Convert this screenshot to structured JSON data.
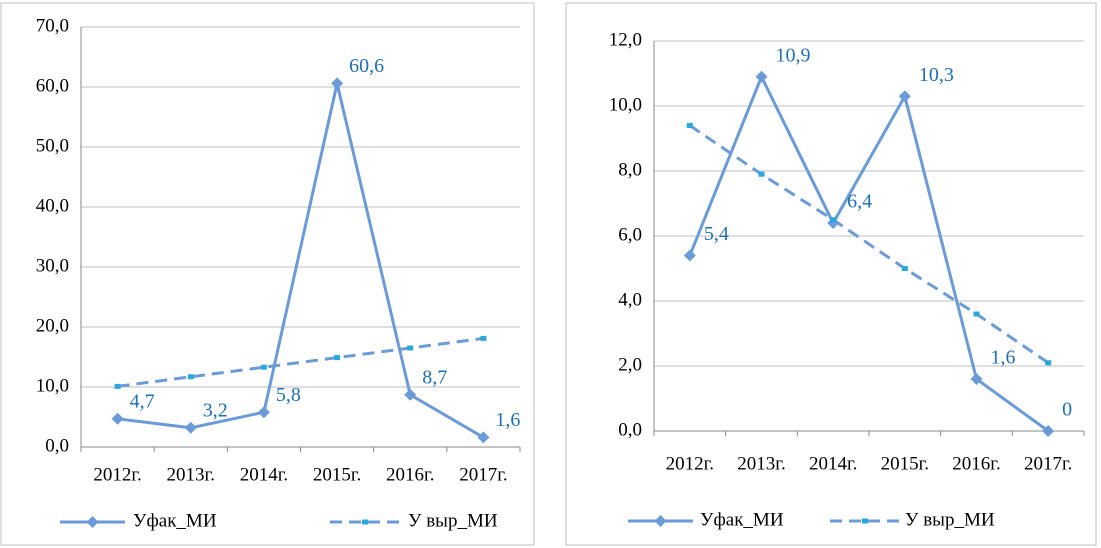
{
  "chart_data": [
    {
      "type": "line",
      "categories": [
        "2012г.",
        "2013г.",
        "2014г.",
        "2015г.",
        "2016г.",
        "2017г."
      ],
      "ylim": [
        0,
        70
      ],
      "yticks": [
        {
          "value": 0,
          "label": "0,0"
        },
        {
          "value": 10,
          "label": "10,0"
        },
        {
          "value": 20,
          "label": "20,0"
        },
        {
          "value": 30,
          "label": "30,0"
        },
        {
          "value": 40,
          "label": "40,0"
        },
        {
          "value": 50,
          "label": "50,0"
        },
        {
          "value": 60,
          "label": "60,0"
        },
        {
          "value": 70,
          "label": "70,0"
        }
      ],
      "grid": true,
      "series": [
        {
          "name": "Уфак_МИ",
          "color": "#6a9bd8",
          "values": [
            4.7,
            3.2,
            5.8,
            60.6,
            8.7,
            1.6
          ],
          "value_labels": [
            "4,7",
            "3,2",
            "5,8",
            "60,6",
            "8,7",
            "1,6"
          ]
        },
        {
          "name": "У выр_МИ",
          "color": "#6a9bd8",
          "values": [
            10.1,
            11.7,
            13.3,
            14.9,
            16.5,
            18.1
          ]
        }
      ]
    },
    {
      "type": "line",
      "categories": [
        "2012г.",
        "2013г.",
        "2014г.",
        "2015г.",
        "2016г.",
        "2017г."
      ],
      "ylim": [
        0,
        12
      ],
      "yticks": [
        {
          "value": 0,
          "label": "0,0"
        },
        {
          "value": 2,
          "label": "2,0"
        },
        {
          "value": 4,
          "label": "4,0"
        },
        {
          "value": 6,
          "label": "6,0"
        },
        {
          "value": 8,
          "label": "8,0"
        },
        {
          "value": 10,
          "label": "10,0"
        },
        {
          "value": 12,
          "label": "12,0"
        }
      ],
      "grid": true,
      "series": [
        {
          "name": "Уфак_МИ",
          "color": "#6a9bd8",
          "values": [
            5.4,
            10.9,
            6.4,
            10.3,
            1.6,
            0
          ],
          "value_labels": [
            "5,4",
            "10,9",
            "6,4",
            "10,3",
            "1,6",
            "0"
          ]
        },
        {
          "name": "У выр_МИ",
          "color": "#6a9bd8",
          "values": [
            9.4,
            7.9,
            6.5,
            5.0,
            3.6,
            2.1
          ]
        }
      ]
    }
  ]
}
